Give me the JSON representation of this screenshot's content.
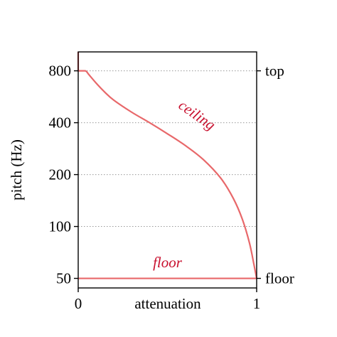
{
  "chart_data": {
    "type": "line",
    "xlabel": "attenuation",
    "ylabel": "pitch (Hz)",
    "xlim": [
      0,
      1
    ],
    "ylim": [
      44,
      1030
    ],
    "yscale": "log",
    "grid": "horizontal-dotted",
    "x_ticks": [
      {
        "value": 0,
        "label": "0"
      },
      {
        "value": 1,
        "label": "1"
      }
    ],
    "y_ticks": [
      {
        "value": 50,
        "label": "50"
      },
      {
        "value": 100,
        "label": "100"
      },
      {
        "value": 200,
        "label": "200"
      },
      {
        "value": 400,
        "label": "400"
      },
      {
        "value": 800,
        "label": "800"
      }
    ],
    "right_ticks": [
      {
        "value": 800,
        "label": "top"
      },
      {
        "value": 50,
        "label": "floor"
      }
    ],
    "line_color": "#e8686a",
    "label_color": "#c8102e",
    "series": [
      {
        "name": "ceiling",
        "x": [
          0,
          0,
          0.04,
          0.06,
          0.1,
          0.15,
          0.2,
          0.3,
          0.4,
          0.5,
          0.6,
          0.7,
          0.8,
          0.87,
          0.92,
          0.96,
          0.985,
          1
        ],
        "y": [
          1030,
          800,
          800,
          760,
          680,
          600,
          540,
          460,
          400,
          345,
          295,
          245,
          190,
          145,
          110,
          80,
          60,
          50
        ]
      },
      {
        "name": "floor",
        "x": [
          0,
          1
        ],
        "y": [
          50,
          50
        ]
      }
    ],
    "annotations": [
      {
        "text": "ceiling",
        "x": 0.65,
        "y": 420,
        "rotate": 35
      },
      {
        "text": "floor",
        "x": 0.5,
        "y": 58,
        "rotate": 0
      }
    ]
  }
}
